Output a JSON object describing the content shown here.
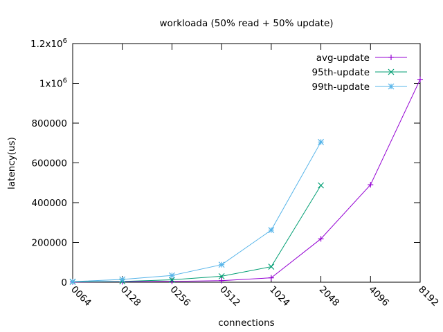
{
  "chart_data": {
    "type": "line",
    "title": "workloada (50% read + 50% update)",
    "xlabel": "connections",
    "ylabel": "latency(us)",
    "categories": [
      "0064",
      "0128",
      "0256",
      "0512",
      "1024",
      "2048",
      "4096",
      "8192"
    ],
    "ylim": [
      0,
      1200000
    ],
    "y_ticks": [
      {
        "value": 0,
        "label": "0"
      },
      {
        "value": 200000,
        "label": "200000"
      },
      {
        "value": 400000,
        "label": "400000"
      },
      {
        "value": 600000,
        "label": "600000"
      },
      {
        "value": 800000,
        "label": "800000"
      },
      {
        "value": 1000000,
        "label": "1x10",
        "sup": "6"
      },
      {
        "value": 1200000,
        "label": "1.2x10",
        "sup": "6"
      }
    ],
    "grid": false,
    "legend": "top-right",
    "series": [
      {
        "name": "avg-update",
        "color": "#9400d3",
        "marker": "plus",
        "values": [
          1000,
          2000,
          4000,
          8000,
          22000,
          218000,
          490000,
          1020000
        ]
      },
      {
        "name": "95th-update",
        "color": "#009e73",
        "marker": "cross",
        "values": [
          2000,
          4000,
          12000,
          30000,
          78000,
          487000,
          null,
          null
        ]
      },
      {
        "name": "99th-update",
        "color": "#56b4e9",
        "marker": "star",
        "values": [
          3000,
          14000,
          34000,
          88000,
          262000,
          705000,
          null,
          null
        ]
      }
    ]
  }
}
